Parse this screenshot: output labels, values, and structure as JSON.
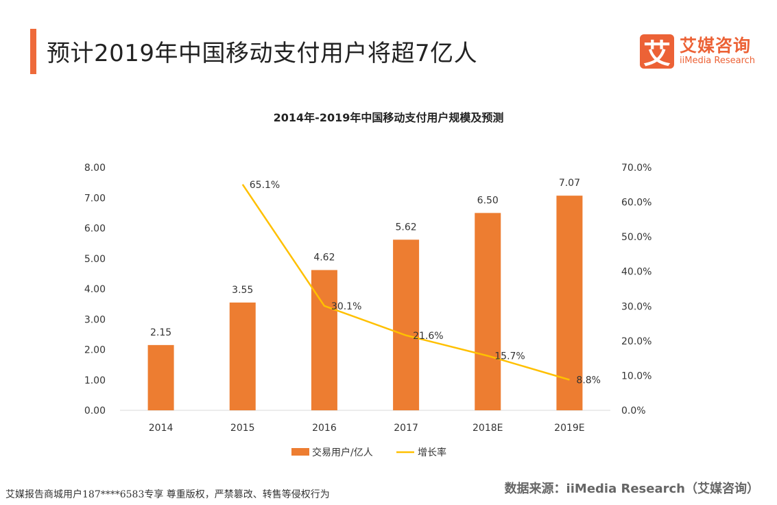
{
  "header": {
    "title": "预计2019年中国移动支付用户将超7亿人"
  },
  "logo": {
    "mark": "艾",
    "name_cn": "艾媒咨询",
    "name_en": "iiMedia Research"
  },
  "chart_data": {
    "type": "bar+line",
    "title": "2014年-2019年中国移动支付用户规模及预测",
    "categories": [
      "2014",
      "2015",
      "2016",
      "2017",
      "2018E",
      "2019E"
    ],
    "series": [
      {
        "name": "交易用户/亿人",
        "type": "bar",
        "axis": "left",
        "color": "#ed7d31",
        "values": [
          2.15,
          3.55,
          4.62,
          5.62,
          6.5,
          7.07
        ],
        "labels": [
          "2.15",
          "3.55",
          "4.62",
          "5.62",
          "6.50",
          "7.07"
        ]
      },
      {
        "name": "增长率",
        "type": "line",
        "axis": "right",
        "color": "#ffc000",
        "values": [
          null,
          65.1,
          30.1,
          21.6,
          15.7,
          8.8
        ],
        "labels": [
          "",
          "65.1%",
          "30.1%",
          "21.6%",
          "15.7%",
          "8.8%"
        ]
      }
    ],
    "y_left": {
      "range": [
        0,
        8
      ],
      "ticks": [
        "0.00",
        "1.00",
        "2.00",
        "3.00",
        "4.00",
        "5.00",
        "6.00",
        "7.00",
        "8.00"
      ]
    },
    "y_right": {
      "range": [
        0,
        70
      ],
      "ticks": [
        "0.0%",
        "10.0%",
        "20.0%",
        "30.0%",
        "40.0%",
        "50.0%",
        "60.0%",
        "70.0%"
      ]
    },
    "grid": false,
    "legend": "bottom"
  },
  "footer": {
    "watermark": "艾媒报告商城用户187****6583专享 尊重版权，严禁篡改、转售等侵权行为",
    "source": "数据来源：iiMedia Research（艾媒咨询）"
  }
}
